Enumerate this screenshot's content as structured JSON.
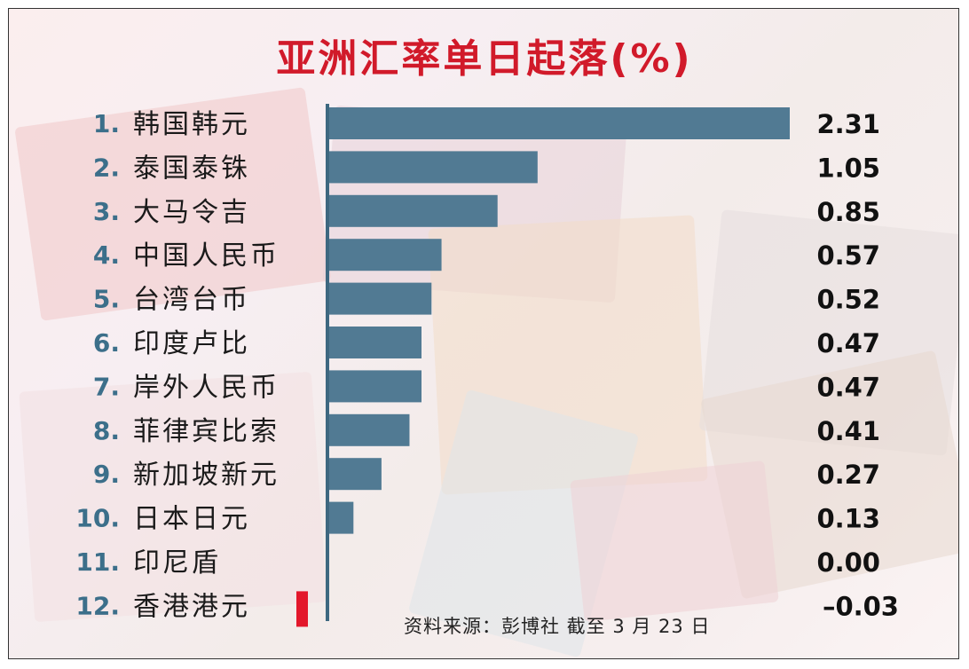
{
  "title": "亚洲汇率单日起落(%)",
  "source": "资料来源：彭博社  截至 3 月 23 日",
  "colors": {
    "bar_positive": "#517a93",
    "bar_negative": "#e3172b",
    "title": "#d11a2a",
    "rank": "#3c6f8a"
  },
  "chart_data": {
    "type": "bar",
    "orientation": "horizontal",
    "title": "亚洲汇率单日起落(%)",
    "ranks": [
      "1.",
      "2.",
      "3.",
      "4.",
      "5.",
      "6.",
      "7.",
      "8.",
      "9.",
      "10.",
      "11.",
      "12."
    ],
    "categories": [
      "韩国韩元",
      "泰国泰铢",
      "大马令吉",
      "中国人民币",
      "台湾台币",
      "印度卢比",
      "岸外人民币",
      "菲律宾比索",
      "新加坡新元",
      "日本日元",
      "印尼盾",
      "香港港元"
    ],
    "values": [
      2.31,
      1.05,
      0.85,
      0.57,
      0.52,
      0.47,
      0.47,
      0.41,
      0.27,
      0.13,
      0.0,
      -0.03
    ],
    "value_labels": [
      "2.31",
      "1.05",
      "0.85",
      "0.57",
      "0.52",
      "0.47",
      "0.47",
      "0.41",
      "0.27",
      "0.13",
      "0.00",
      "–0.03"
    ],
    "xlim": [
      -0.1,
      2.31
    ],
    "grid": false,
    "legend": "none"
  }
}
